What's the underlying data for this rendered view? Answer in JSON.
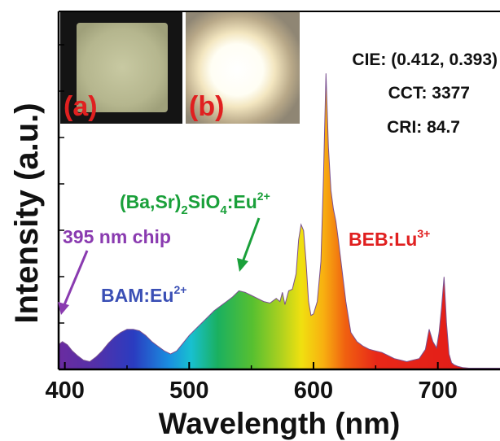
{
  "chart_data": {
    "type": "area",
    "title": "",
    "xlabel": "Wavelength (nm)",
    "ylabel": "Intensity (a.u.)",
    "xlim": [
      395,
      750
    ],
    "ylim": [
      0,
      1
    ],
    "xticks": [
      400,
      500,
      600,
      700
    ],
    "xtick_labels": [
      "400",
      "500",
      "600",
      "700"
    ],
    "grid": false,
    "fill": "visible-spectrum gradient",
    "x": [
      395,
      398,
      402,
      406,
      410,
      415,
      420,
      425,
      430,
      435,
      440,
      445,
      450,
      455,
      460,
      465,
      470,
      475,
      480,
      485,
      490,
      495,
      500,
      505,
      510,
      515,
      520,
      525,
      530,
      535,
      540,
      545,
      550,
      555,
      560,
      565,
      570,
      573,
      575,
      577,
      580,
      583,
      586,
      588,
      590,
      592,
      594,
      596,
      598,
      600,
      603,
      606,
      608,
      610,
      612,
      614,
      616,
      618,
      620,
      623,
      626,
      630,
      635,
      640,
      645,
      650,
      655,
      660,
      665,
      670,
      675,
      680,
      685,
      690,
      693,
      696,
      699,
      701,
      703,
      705,
      707,
      709,
      711,
      713,
      716,
      720,
      725,
      730,
      735,
      740,
      745,
      750
    ],
    "y": [
      0.08,
      0.09,
      0.08,
      0.06,
      0.045,
      0.03,
      0.025,
      0.04,
      0.06,
      0.085,
      0.105,
      0.12,
      0.13,
      0.13,
      0.125,
      0.11,
      0.09,
      0.075,
      0.06,
      0.05,
      0.06,
      0.085,
      0.11,
      0.13,
      0.15,
      0.17,
      0.19,
      0.205,
      0.22,
      0.235,
      0.255,
      0.25,
      0.24,
      0.23,
      0.22,
      0.215,
      0.23,
      0.22,
      0.25,
      0.21,
      0.255,
      0.26,
      0.31,
      0.42,
      0.47,
      0.45,
      0.35,
      0.22,
      0.175,
      0.18,
      0.22,
      0.35,
      0.62,
      0.96,
      0.72,
      0.58,
      0.52,
      0.48,
      0.42,
      0.32,
      0.22,
      0.12,
      0.09,
      0.075,
      0.065,
      0.06,
      0.055,
      0.045,
      0.035,
      0.03,
      0.025,
      0.03,
      0.035,
      0.065,
      0.13,
      0.09,
      0.07,
      0.12,
      0.2,
      0.3,
      0.15,
      0.05,
      0.022,
      0.015,
      0.01,
      0.006,
      0.004,
      0.004,
      0.004,
      0.004,
      0.004,
      0.004
    ],
    "annotations": {
      "cie": "CIE: (0.412, 0.393)",
      "cct": "CCT: 3377",
      "cri": "CRI: 84.7",
      "inset_a": "(a)",
      "inset_b": "(b)",
      "chip": "395 nm chip",
      "bam": {
        "base": "BAM:Eu",
        "sup": "2+"
      },
      "silicate": {
        "p1": "(Ba,Sr)",
        "sub": "2",
        "p2": "SiO",
        "sub2": "4",
        "p3": ":Eu",
        "sup": "2+"
      },
      "beb": {
        "base": "BEB:Lu",
        "sup": "3+"
      }
    },
    "colors": {
      "chip": "#8a3bb0",
      "bam": "#3a4fb5",
      "silicate": "#1aa03a",
      "beb": "#e02020",
      "inset_label": "#e02020"
    }
  }
}
